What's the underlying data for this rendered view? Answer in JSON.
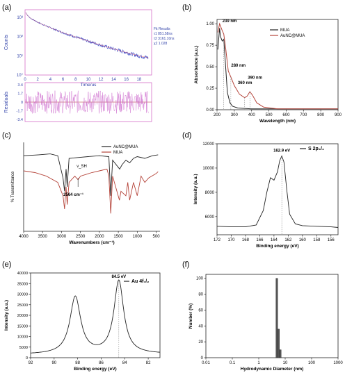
{
  "chart_data": [
    {
      "panel": "(a)",
      "type": "line",
      "xlabel": "Time/us",
      "ylabel": "Counts",
      "ylabel2": "Residuals",
      "xlim": [
        0,
        20
      ],
      "xticks": [
        "0",
        "2",
        "4",
        "6",
        "8",
        "10",
        "12",
        "14",
        "16",
        "18"
      ],
      "yticks_log": [
        "10°",
        "10¹",
        "10²",
        "10³"
      ],
      "res_ticks": [
        "3.4",
        "1.7",
        "0",
        "-1.7",
        "-3.4"
      ],
      "fit_results": [
        "Fit Results",
        "τ1  851.58ns",
        "τ2  3161.10ns",
        "χ2  1.028"
      ],
      "decay": {
        "t": [
          0.1,
          0.5,
          1,
          2,
          3,
          4,
          6,
          8,
          10,
          12,
          14,
          16,
          18,
          19.5
        ],
        "counts": [
          1800,
          1150,
          850,
          560,
          400,
          290,
          160,
          95,
          58,
          36,
          23,
          15,
          10,
          8
        ]
      }
    },
    {
      "panel": "(b)",
      "type": "line",
      "xlabel": "Wavelength (nm)",
      "ylabel": "Absorbance (a.u.)",
      "xlim": [
        200,
        900
      ],
      "ylim": [
        0,
        1.05
      ],
      "xticks": [
        "200",
        "300",
        "400",
        "500",
        "600",
        "700",
        "800",
        "900"
      ],
      "yticks": [
        "0.00",
        "0.25",
        "0.50",
        "0.75",
        "1.00"
      ],
      "annotations": [
        "239 nm",
        "280 nm",
        "360 nm",
        "390 nm"
      ],
      "series": [
        {
          "name": "MUA",
          "color": "#222222",
          "x": [
            205,
            215,
            220,
            230,
            239,
            250,
            260,
            275,
            290,
            320,
            400,
            500,
            700,
            900
          ],
          "y": [
            0.7,
            0.95,
            0.85,
            0.8,
            0.82,
            0.5,
            0.2,
            0.08,
            0.04,
            0.02,
            0.01,
            0.01,
            0.01,
            0.01
          ]
        },
        {
          "name": "AuNC@MUA",
          "color": "#b5443a",
          "x": [
            205,
            215,
            230,
            239,
            250,
            265,
            280,
            300,
            330,
            360,
            375,
            390,
            405,
            430,
            470,
            550,
            700,
            900
          ],
          "y": [
            0.9,
            1.0,
            0.92,
            0.88,
            0.72,
            0.45,
            0.38,
            0.28,
            0.18,
            0.14,
            0.16,
            0.21,
            0.17,
            0.08,
            0.03,
            0.01,
            0.01,
            0.01
          ]
        }
      ]
    },
    {
      "panel": "(c)",
      "type": "line",
      "xlabel": "Wavenumbers (cm⁻¹)",
      "ylabel": "% Transmittance",
      "xlim": [
        4000,
        400
      ],
      "xticks": [
        "4000",
        "3500",
        "3000",
        "2500",
        "2000",
        "1500",
        "1000",
        "500"
      ],
      "annotations": [
        "v_SH",
        "2564 cm⁻¹"
      ],
      "series": [
        {
          "name": "AuNC@MUA",
          "color": "#222222",
          "x": [
            4000,
            3600,
            3300,
            3100,
            2960,
            2920,
            2880,
            2850,
            2800,
            2564,
            2300,
            2000,
            1750,
            1700,
            1650,
            1465,
            1400,
            1300,
            1200,
            1100,
            1000,
            800,
            600,
            450
          ],
          "y": [
            85,
            86,
            87,
            85,
            60,
            45,
            70,
            50,
            82,
            83,
            84,
            85,
            84,
            40,
            80,
            70,
            75,
            80,
            77,
            82,
            84,
            82,
            85,
            86
          ]
        },
        {
          "name": "MUA",
          "color": "#b5443a",
          "x": [
            4000,
            3700,
            3400,
            3100,
            2960,
            2920,
            2880,
            2850,
            2800,
            2650,
            2564,
            2500,
            2200,
            2000,
            1800,
            1750,
            1700,
            1650,
            1470,
            1430,
            1300,
            1250,
            1200,
            1100,
            1000,
            900,
            800,
            700,
            500,
            450
          ],
          "y": [
            68,
            66,
            62,
            55,
            40,
            25,
            50,
            30,
            55,
            62,
            58,
            62,
            66,
            68,
            70,
            62,
            20,
            62,
            35,
            45,
            40,
            55,
            35,
            55,
            40,
            62,
            55,
            60,
            65,
            67
          ]
        }
      ]
    },
    {
      "panel": "(d)",
      "type": "line",
      "xlabel": "Binding energy (eV)",
      "ylabel": "Intensity (a.u.)",
      "xlim": [
        172,
        155
      ],
      "ylim": [
        4500,
        12000
      ],
      "xticks": [
        "172",
        "170",
        "168",
        "166",
        "164",
        "162",
        "160",
        "158",
        "156"
      ],
      "yticks": [
        "6000",
        "8000",
        "10000",
        "12000"
      ],
      "annotations": [
        "162.9 eV"
      ],
      "legend": "S 2p₃/₂",
      "series": [
        {
          "name": "S 2p₃/₂",
          "x": [
            172,
            170,
            168,
            166.5,
            165.5,
            165,
            164.5,
            164,
            163.5,
            163.2,
            162.9,
            162.6,
            162.2,
            161.8,
            161,
            160,
            158,
            156,
            155
          ],
          "y": [
            5200,
            5150,
            5150,
            5300,
            6500,
            8000,
            9200,
            9000,
            9700,
            10600,
            11000,
            10500,
            8200,
            6200,
            5400,
            5250,
            5200,
            5150,
            5100
          ]
        }
      ]
    },
    {
      "panel": "(e)",
      "type": "line",
      "xlabel": "Binding energy (eV)",
      "ylabel": "Intensity (a.u.)",
      "xlim": [
        92,
        81
      ],
      "ylim": [
        0,
        40000
      ],
      "xticks": [
        "92",
        "90",
        "88",
        "86",
        "84",
        "82"
      ],
      "yticks": [
        "0",
        "5000",
        "10000",
        "15000",
        "20000",
        "25000",
        "30000",
        "35000",
        "40000"
      ],
      "annotations": [
        "84.5 eV"
      ],
      "legend": "Au 4f₇/₂",
      "series": [
        {
          "name": "Au 4f₇/₂",
          "peaks": [
            {
              "center": 88.2,
              "height": 27000,
              "width": 0.55
            },
            {
              "center": 84.5,
              "height": 34500,
              "width": 0.5
            }
          ],
          "baseline": 1500
        }
      ]
    },
    {
      "panel": "(f)",
      "type": "bar",
      "xlabel": "Hydrodynamic Diameter (nm)",
      "ylabel": "Number (%)",
      "xscale": "log",
      "xlim": [
        0.01,
        1000
      ],
      "ylim": [
        0,
        100
      ],
      "xticks": [
        "0.01",
        "0.1",
        "1",
        "10",
        "100",
        "1000"
      ],
      "yticks": [
        "0",
        "20",
        "40",
        "60",
        "80",
        "100"
      ],
      "x": [
        4.8,
        5.6,
        6.5
      ],
      "values": [
        100,
        36,
        10
      ]
    }
  ]
}
